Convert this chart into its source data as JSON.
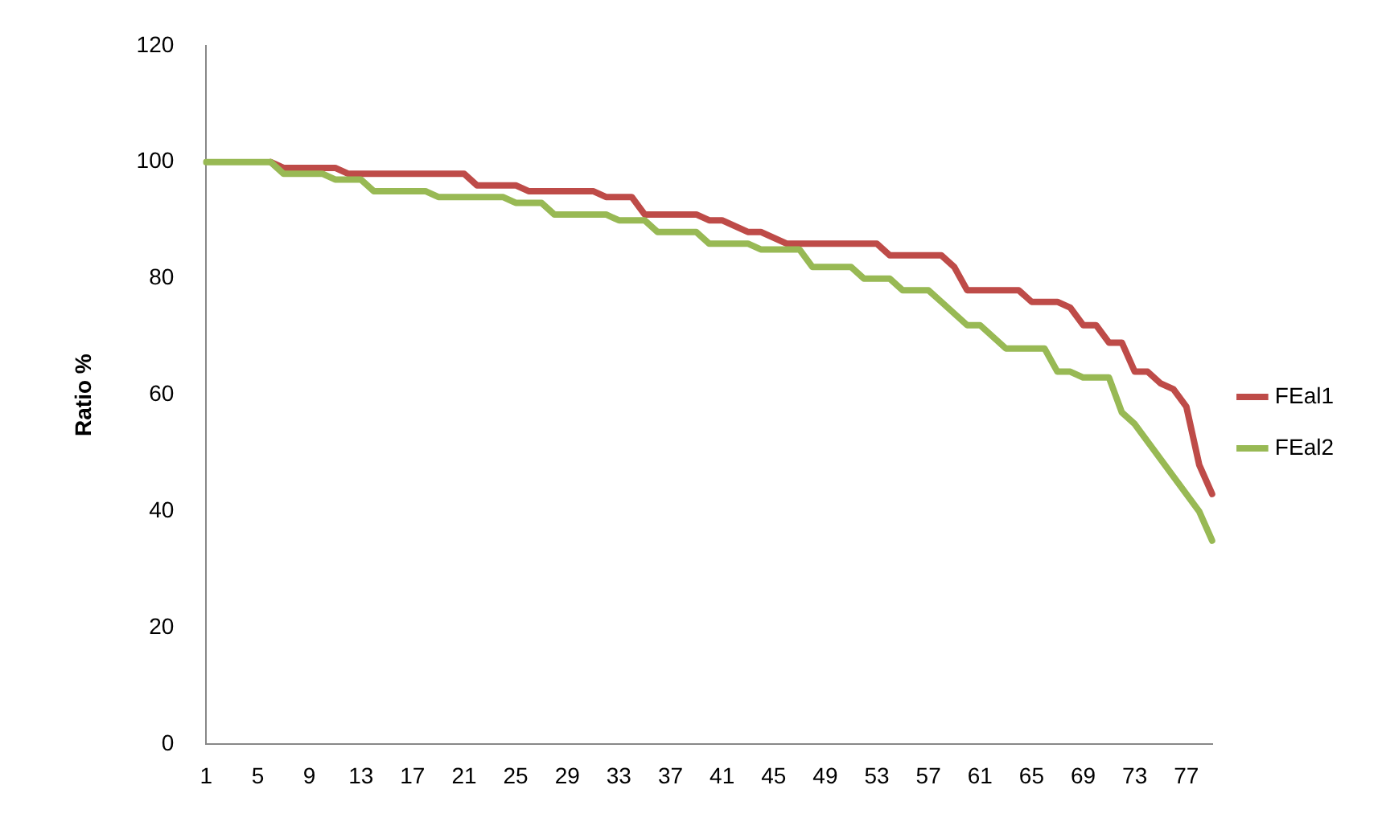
{
  "chart_data": {
    "type": "line",
    "ylabel": "Ratio %",
    "categories": [
      "1",
      null,
      null,
      null,
      "5",
      null,
      null,
      null,
      "9",
      null,
      null,
      null,
      "13",
      null,
      null,
      null,
      "17",
      null,
      null,
      null,
      "21",
      null,
      null,
      null,
      "25",
      null,
      null,
      null,
      "29",
      null,
      null,
      null,
      "33",
      null,
      null,
      null,
      "37",
      null,
      null,
      null,
      "41",
      null,
      null,
      null,
      "45",
      null,
      null,
      null,
      "49",
      null,
      null,
      null,
      "53",
      null,
      null,
      null,
      "57",
      null,
      null,
      null,
      "61",
      null,
      null,
      null,
      "65",
      null,
      null,
      null,
      "69",
      null,
      null,
      null,
      "73",
      null,
      null,
      null,
      "77",
      null,
      null
    ],
    "series": [
      {
        "name": "FEal1",
        "color": "#be4b48",
        "values": [
          null,
          null,
          null,
          null,
          null,
          100,
          99,
          99,
          99,
          99,
          99,
          98,
          98,
          98,
          98,
          98,
          98,
          98,
          98,
          98,
          98,
          96,
          96,
          96,
          96,
          95,
          95,
          95,
          95,
          95,
          95,
          94,
          94,
          94,
          91,
          91,
          91,
          91,
          91,
          90,
          90,
          89,
          88,
          88,
          87,
          86,
          86,
          86,
          86,
          86,
          86,
          86,
          86,
          84,
          84,
          84,
          84,
          84,
          82,
          78,
          78,
          78,
          78,
          78,
          76,
          76,
          76,
          75,
          72,
          72,
          69,
          69,
          64,
          64,
          62,
          61,
          58,
          48,
          43
        ]
      },
      {
        "name": "FEal2",
        "color": "#98b954",
        "values": [
          100,
          100,
          100,
          100,
          100,
          100,
          98,
          98,
          98,
          98,
          97,
          97,
          97,
          95,
          95,
          95,
          95,
          95,
          94,
          94,
          94,
          94,
          94,
          94,
          93,
          93,
          93,
          91,
          91,
          91,
          91,
          91,
          90,
          90,
          90,
          88,
          88,
          88,
          88,
          86,
          86,
          86,
          86,
          85,
          85,
          85,
          85,
          82,
          82,
          82,
          82,
          80,
          80,
          80,
          78,
          78,
          78,
          76,
          74,
          72,
          72,
          70,
          68,
          68,
          68,
          68,
          64,
          64,
          63,
          63,
          63,
          57,
          55,
          52,
          49,
          46,
          43,
          40,
          35
        ]
      }
    ],
    "ylim": [
      0,
      120
    ],
    "yticks": [
      0,
      20,
      40,
      60,
      80,
      100,
      120
    ],
    "grid": false,
    "legend": "right",
    "marker": "none",
    "line_style": "solid"
  }
}
